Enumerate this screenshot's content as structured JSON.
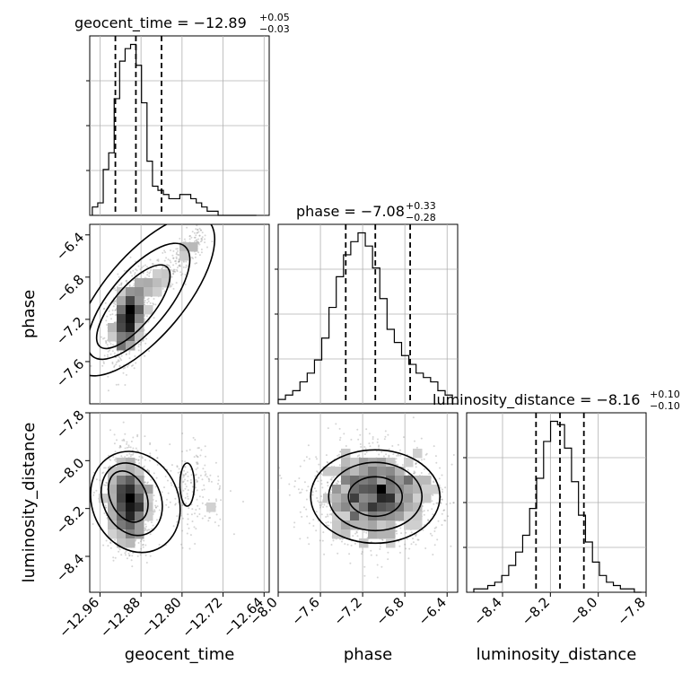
{
  "chart_data": {
    "type": "corner",
    "parameters": [
      "geocent_time",
      "phase",
      "luminosity_distance"
    ],
    "titles": [
      {
        "param": "geocent_time",
        "label": "geocent_time = ",
        "median": "−12.89",
        "plus": "+0.05",
        "minus": "−0.03"
      },
      {
        "param": "phase",
        "label": "phase = ",
        "median": "−7.08",
        "plus": "+0.33",
        "minus": "−0.28"
      },
      {
        "param": "luminosity_distance",
        "label": "luminosity_distance = ",
        "median": "−8.16",
        "plus": "+0.10",
        "minus": "−0.10"
      }
    ],
    "axes": {
      "geocent_time": {
        "range": [
          -12.98,
          -12.63
        ],
        "ticks": [
          -12.96,
          -12.88,
          -12.8,
          -12.72,
          -12.64
        ],
        "tick_labels": [
          "−12.96",
          "−12.88",
          "−12.80",
          "−12.72",
          "−12.64"
        ]
      },
      "phase": {
        "range": [
          -8.0,
          -6.3
        ],
        "ticks": [
          -8.0,
          -7.6,
          -7.2,
          -6.8,
          -6.4
        ],
        "tick_labels": [
          "−8.0",
          "−7.6",
          "−7.2",
          "−6.8",
          "−6.4"
        ]
      },
      "luminosity_distance": {
        "range": [
          -8.55,
          -7.8
        ],
        "ticks": [
          -8.4,
          -8.2,
          -8.0,
          -7.8
        ],
        "tick_labels": [
          "−8.4",
          "−8.2",
          "−8.0",
          "−7.8"
        ]
      }
    },
    "phase_y_ticks": {
      "ticks": [
        -7.6,
        -7.2,
        -6.8,
        -6.4
      ],
      "tick_labels": [
        "−7.6",
        "−7.2",
        "−6.8",
        "−6.4"
      ]
    },
    "lumdist_y_ticks": {
      "ticks": [
        -8.4,
        -8.2,
        -8.0,
        -7.8
      ],
      "tick_labels": [
        "−8.4",
        "−8.2",
        "−8.0",
        "−7.8"
      ]
    },
    "quantiles": {
      "geocent_time": [
        -12.93,
        -12.89,
        -12.84
      ],
      "phase": [
        -7.36,
        -7.08,
        -6.75
      ],
      "luminosity_distance": [
        -8.26,
        -8.16,
        -8.06
      ]
    },
    "hist_1d": {
      "geocent_time": [
        2,
        3,
        11,
        15,
        28,
        37,
        40,
        41,
        36,
        27,
        13,
        7,
        6,
        5,
        4,
        4,
        5,
        5,
        4,
        3,
        2,
        1,
        1,
        0,
        0,
        0,
        0,
        0,
        0,
        0
      ],
      "phase": [
        1,
        2,
        3,
        5,
        7,
        10,
        15,
        22,
        29,
        34,
        37,
        39,
        36,
        31,
        24,
        17,
        14,
        11,
        9,
        7,
        6,
        5,
        3,
        2
      ],
      "luminosity_distance": [
        1,
        1,
        2,
        3,
        5,
        8,
        12,
        17,
        25,
        34,
        45,
        51,
        50,
        43,
        33,
        23,
        15,
        9,
        5,
        3,
        2,
        1,
        1,
        0
      ]
    },
    "grid": true
  }
}
